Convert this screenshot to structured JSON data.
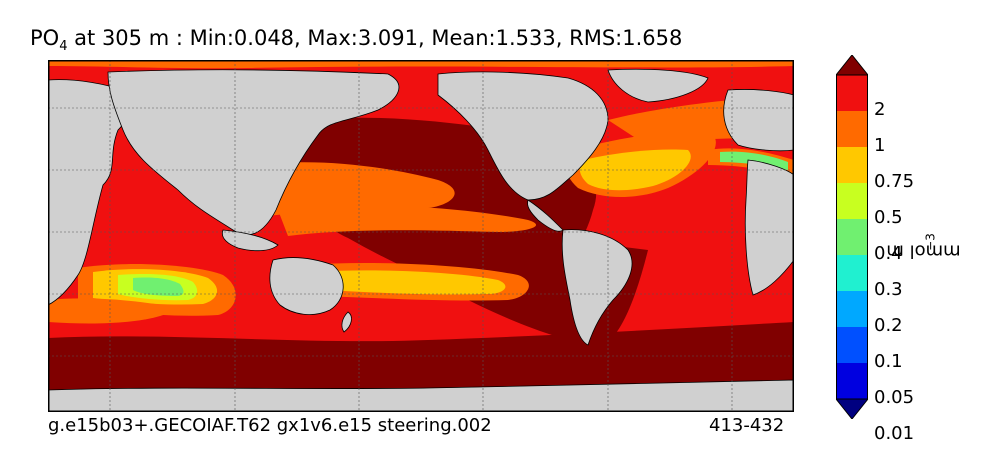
{
  "title": {
    "variable": "PO",
    "variable_subscript": "4",
    "text": " at 305 m : Min:0.048, Max:3.091, Mean:1.533, RMS:1.658"
  },
  "footer": {
    "case_name": "g.e15b03+.GECOIAF.T62 gx1v6.e15 steering.002",
    "years": "413-432"
  },
  "colorbar": {
    "units": "mmol m",
    "units_exponent": "−3",
    "labels": [
      "2",
      "1",
      "0.75",
      "0.5",
      "0.4",
      "0.3",
      "0.2",
      "0.1",
      "0.05",
      "0.01"
    ],
    "colors": [
      "#000080",
      "#0000e0",
      "#0050ff",
      "#00a8ff",
      "#20f0d0",
      "#70f070",
      "#c8ff20",
      "#ffc800",
      "#ff6a00",
      "#f01010",
      "#800000"
    ],
    "extend": "both"
  },
  "map": {
    "land_color": "#d0d0d0",
    "missing_color": "#ffffff",
    "grid": true,
    "projection": "cylindrical",
    "lon_range": [
      20,
      380
    ],
    "lat_range": [
      -80,
      90
    ]
  }
}
